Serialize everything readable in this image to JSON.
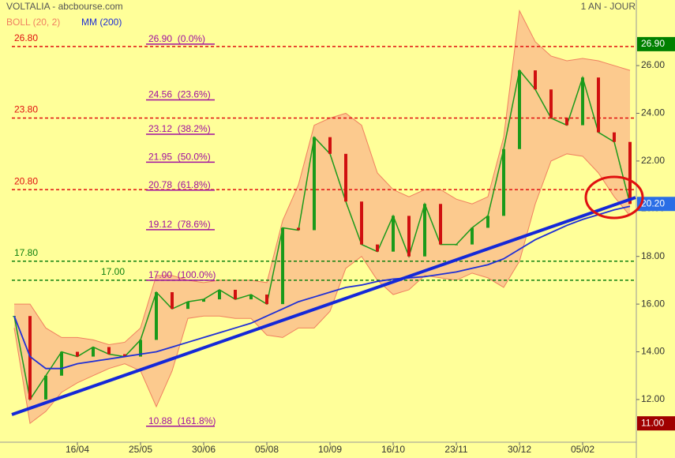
{
  "chart_data": {
    "type": "stock",
    "title": "VOLTALIA - abcbourse.com",
    "period": "1 AN - JOUR",
    "categories": [
      null,
      null,
      null,
      null,
      "16/04",
      null,
      null,
      null,
      "25/05",
      null,
      null,
      null,
      "30/06",
      null,
      null,
      null,
      "05/08",
      null,
      null,
      null,
      "10/09",
      null,
      null,
      null,
      "16/10",
      null,
      null,
      null,
      "23/11",
      null,
      null,
      null,
      "30/12",
      null,
      null,
      null,
      "05/02",
      null,
      null,
      null
    ],
    "close": {
      "color": "#1a9a1a",
      "values": [
        15.5,
        12,
        13,
        14,
        13.8,
        14.2,
        13.9,
        13.8,
        14.5,
        16.5,
        15.8,
        16.1,
        16.2,
        16.6,
        16.2,
        16.4,
        16,
        19.2,
        19.1,
        23,
        22.3,
        20.3,
        18.5,
        18.2,
        19.7,
        18,
        20.2,
        18.5,
        18.5,
        19.2,
        19.7,
        22.5,
        25.8,
        25,
        23.8,
        23.5,
        25.5,
        23.2,
        22.8,
        20.2
      ]
    },
    "bollinger": {
      "name": "BOLL (20, 2)",
      "color": "#f08060",
      "fill": "#fcca8e",
      "upper": [
        16,
        16,
        15,
        14.6,
        14.6,
        14.5,
        14.3,
        14.4,
        15,
        17.2,
        17.2,
        17,
        16.9,
        17,
        17,
        17,
        16.9,
        19.5,
        21,
        23.5,
        23.8,
        24,
        23.5,
        21.5,
        20.8,
        20.5,
        20.8,
        20.8,
        20.4,
        20.2,
        20.5,
        23,
        28.3,
        27,
        26.4,
        26.2,
        26.3,
        26.2,
        26,
        25.8
      ],
      "lower": [
        15,
        11,
        11.5,
        12.3,
        12.7,
        13,
        13.3,
        13.5,
        13.2,
        11.7,
        13.2,
        15.4,
        15.5,
        15.5,
        15.4,
        15.4,
        14.7,
        14.6,
        15,
        15,
        15.7,
        17.5,
        18,
        17,
        16.4,
        16.6,
        17.2,
        17.1,
        17,
        17.3,
        17.1,
        16.7,
        17.8,
        20.2,
        22,
        22.3,
        22.2,
        21.5,
        20.5,
        19.7
      ]
    },
    "ma": {
      "name": "MM (200)",
      "color": "#1f2fd6",
      "values": [
        15.5,
        13.8,
        13.3,
        13.3,
        13.5,
        13.6,
        13.7,
        13.8,
        13.9,
        14,
        14.2,
        14.4,
        14.6,
        14.8,
        15,
        15.2,
        15.5,
        15.8,
        16.1,
        16.3,
        16.5,
        16.7,
        16.8,
        16.95,
        17.05,
        17.1,
        17.15,
        17.25,
        17.35,
        17.5,
        17.65,
        17.9,
        18.3,
        18.7,
        19,
        19.3,
        19.55,
        19.75,
        19.95,
        20.1
      ]
    },
    "trendline": {
      "color": "#1428d8",
      "values": [
        11.37,
        20.47
      ]
    },
    "levels": [
      {
        "value": 26.8,
        "label": "26.80",
        "color": "#e01010"
      },
      {
        "value": 23.8,
        "label": "23.80",
        "color": "#e01010"
      },
      {
        "value": 20.8,
        "label": "20.80",
        "color": "#e01010"
      },
      {
        "value": 17.8,
        "label": "17.80",
        "color": "#108010"
      },
      {
        "value": 17,
        "label": "17.00",
        "color": "#108010"
      }
    ],
    "fibonacci": {
      "color": "#a010a0",
      "levels": [
        {
          "value": 26.9,
          "label": "26.90  (0.0%)"
        },
        {
          "value": 24.56,
          "label": "24.56  (23.6%)"
        },
        {
          "value": 23.12,
          "label": "23.12  (38.2%)"
        },
        {
          "value": 21.95,
          "label": "21.95  (50.0%)"
        },
        {
          "value": 20.78,
          "label": "20.78  (61.8%)"
        },
        {
          "value": 19.12,
          "label": "19.12  (78.6%)"
        },
        {
          "value": 17,
          "label": "17.00  (100.0%)"
        },
        {
          "value": 10.88,
          "label": "10.88  (161.8%)"
        }
      ]
    },
    "price_tags": [
      {
        "value": 26.9,
        "label": "26.90",
        "color": "#008000"
      },
      {
        "value": 20.2,
        "label": "20.20",
        "color": "#2a6ee6"
      },
      {
        "value": 11,
        "label": "11.00",
        "color": "#a00000"
      }
    ],
    "ylim": [
      10.21,
      28.75
    ],
    "yticks": [
      {
        "value": 12,
        "label": "12.00"
      },
      {
        "value": 14,
        "label": "14.00"
      },
      {
        "value": 16,
        "label": "16.00"
      },
      {
        "value": 18,
        "label": "18.00"
      },
      {
        "value": 20,
        "label": "20.00"
      },
      {
        "value": 22,
        "label": "22.00"
      },
      {
        "value": 24,
        "label": "24.00"
      },
      {
        "value": 26,
        "label": "26.00"
      }
    ]
  }
}
